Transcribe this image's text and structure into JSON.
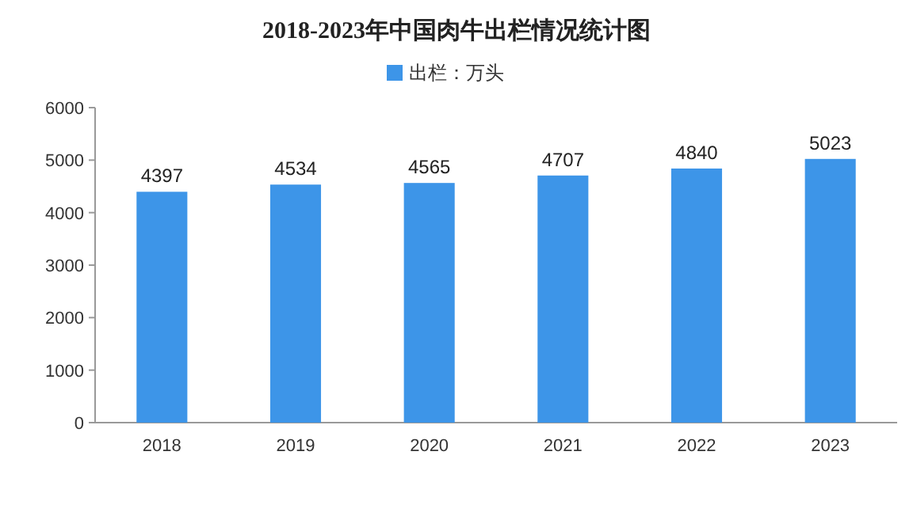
{
  "chart_data": {
    "type": "bar",
    "title": "2018-2023年中国肉牛出栏情况统计图",
    "categories": [
      "2018",
      "2019",
      "2020",
      "2021",
      "2022",
      "2023"
    ],
    "series": [
      {
        "name": "出栏：万头",
        "color": "#3d95e8",
        "values": [
          4397,
          4534,
          4565,
          4707,
          4840,
          5023
        ]
      }
    ],
    "ylim": [
      0,
      6000
    ],
    "yticks": [
      0,
      1000,
      2000,
      3000,
      4000,
      5000,
      6000
    ],
    "data_labels": true,
    "legend": "top",
    "grid": false
  }
}
